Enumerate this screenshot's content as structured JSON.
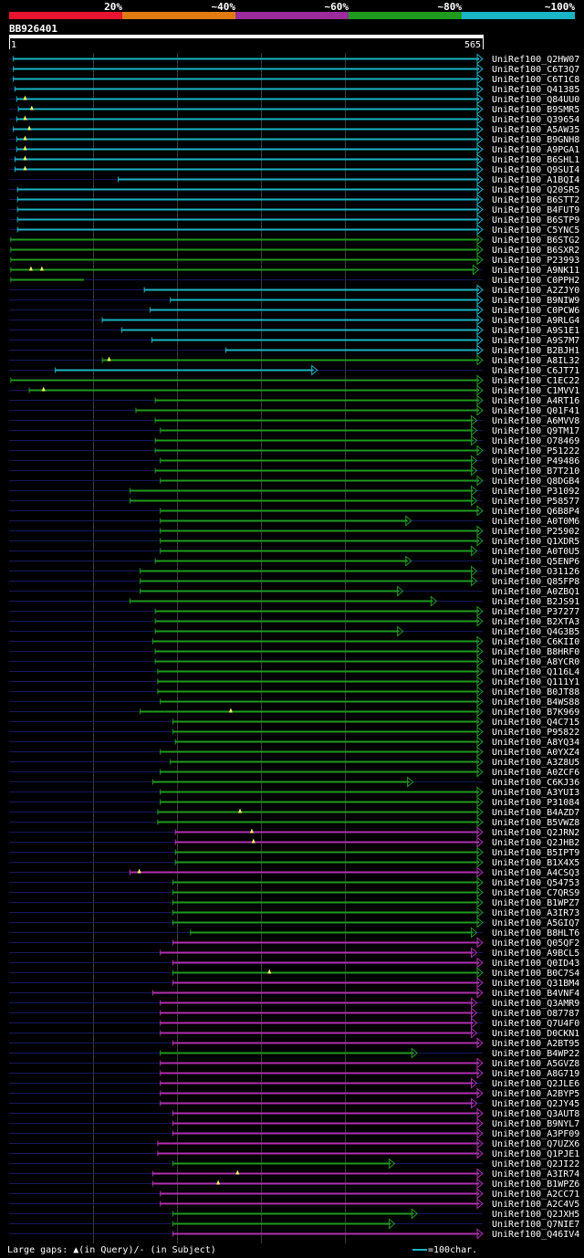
{
  "legend_scale": {
    "labels": [
      "20%",
      "~40%",
      "~60%",
      "~80%",
      "~100%"
    ],
    "colors": [
      "#e8132e",
      "#e07b12",
      "#9b2c9b",
      "#1f9a1f",
      "#19b5c4"
    ]
  },
  "query": {
    "id": "BB926401",
    "start": "1",
    "end": "565",
    "length": 565
  },
  "colors": {
    "cyan": "#19b5c4",
    "green": "#1f9a1f",
    "purple": "#b02fb0",
    "unaligned": "#141a5a",
    "grid": "#3a3a3a",
    "gap_marker": "#ffff66"
  },
  "footer": {
    "gap_note": "Large gaps: ▲(in Query)/- (in Subject)",
    "scale_note": "=100char."
  },
  "hits": [
    {
      "name": "UniRef100_Q2HW07",
      "color": "cyan",
      "start": 6,
      "end": 565,
      "arrow": true,
      "gaps": []
    },
    {
      "name": "UniRef100_C6T3Q7",
      "color": "cyan",
      "start": 6,
      "end": 565,
      "arrow": true,
      "gaps": []
    },
    {
      "name": "UniRef100_C6T1C8",
      "color": "cyan",
      "start": 6,
      "end": 565,
      "arrow": true,
      "gaps": []
    },
    {
      "name": "UniRef100_Q41385",
      "color": "cyan",
      "start": 8,
      "end": 565,
      "arrow": true,
      "gaps": []
    },
    {
      "name": "UniRef100_Q84UU0",
      "color": "cyan",
      "start": 10,
      "end": 565,
      "arrow": true,
      "gaps": [
        20
      ]
    },
    {
      "name": "UniRef100_B9SMR5",
      "color": "cyan",
      "start": 12,
      "end": 565,
      "arrow": true,
      "gaps": [
        28
      ]
    },
    {
      "name": "UniRef100_Q39654",
      "color": "cyan",
      "start": 10,
      "end": 565,
      "arrow": true,
      "gaps": [
        20
      ]
    },
    {
      "name": "UniRef100_A5AW35",
      "color": "cyan",
      "start": 6,
      "end": 565,
      "arrow": true,
      "gaps": [
        25
      ]
    },
    {
      "name": "UniRef100_B9GNH8",
      "color": "cyan",
      "start": 10,
      "end": 565,
      "arrow": true,
      "gaps": [
        20
      ]
    },
    {
      "name": "UniRef100_A9PGA1",
      "color": "cyan",
      "start": 10,
      "end": 565,
      "arrow": true,
      "gaps": [
        20
      ]
    },
    {
      "name": "UniRef100_B6SHL1",
      "color": "cyan",
      "start": 8,
      "end": 565,
      "arrow": true,
      "gaps": [
        20
      ]
    },
    {
      "name": "UniRef100_Q9SUI4",
      "color": "cyan",
      "start": 8,
      "end": 565,
      "arrow": true,
      "gaps": [
        20
      ]
    },
    {
      "name": "UniRef100_A1BQI4",
      "color": "cyan",
      "start": 131,
      "end": 565,
      "arrow": true,
      "gaps": []
    },
    {
      "name": "UniRef100_Q20SR5",
      "color": "cyan",
      "start": 11,
      "end": 565,
      "arrow": true,
      "gaps": []
    },
    {
      "name": "UniRef100_B6STT2",
      "color": "cyan",
      "start": 11,
      "end": 565,
      "arrow": true,
      "gaps": []
    },
    {
      "name": "UniRef100_B4FUT9",
      "color": "cyan",
      "start": 11,
      "end": 565,
      "arrow": true,
      "gaps": []
    },
    {
      "name": "UniRef100_B6STP9",
      "color": "cyan",
      "start": 11,
      "end": 565,
      "arrow": true,
      "gaps": []
    },
    {
      "name": "UniRef100_C5YNC5",
      "color": "cyan",
      "start": 11,
      "end": 565,
      "arrow": true,
      "gaps": []
    },
    {
      "name": "UniRef100_B6STG2",
      "color": "green",
      "start": 3,
      "end": 565,
      "arrow": true,
      "gaps": []
    },
    {
      "name": "UniRef100_B6SXR2",
      "color": "green",
      "start": 3,
      "end": 565,
      "arrow": true,
      "gaps": []
    },
    {
      "name": "UniRef100_P23993",
      "color": "green",
      "start": 3,
      "end": 565,
      "arrow": true,
      "gaps": []
    },
    {
      "name": "UniRef100_A9NK11",
      "color": "green",
      "start": 3,
      "end": 560,
      "arrow": true,
      "gaps": [
        27,
        40
      ]
    },
    {
      "name": "UniRef100_C0PPH2",
      "color": "green",
      "start": 3,
      "end": 90,
      "arrow": false,
      "gaps": []
    },
    {
      "name": "UniRef100_A2ZJY0",
      "color": "cyan",
      "start": 162,
      "end": 565,
      "arrow": true,
      "gaps": []
    },
    {
      "name": "UniRef100_B9NIW9",
      "color": "cyan",
      "start": 193,
      "end": 565,
      "arrow": true,
      "gaps": []
    },
    {
      "name": "UniRef100_C0PCW6",
      "color": "cyan",
      "start": 169,
      "end": 565,
      "arrow": true,
      "gaps": []
    },
    {
      "name": "UniRef100_A9RLG4",
      "color": "cyan",
      "start": 112,
      "end": 565,
      "arrow": true,
      "gaps": []
    },
    {
      "name": "UniRef100_A9S1E1",
      "color": "cyan",
      "start": 135,
      "end": 565,
      "arrow": true,
      "gaps": []
    },
    {
      "name": "UniRef100_A9S7M7",
      "color": "cyan",
      "start": 171,
      "end": 565,
      "arrow": true,
      "gaps": []
    },
    {
      "name": "UniRef100_B2BJH1",
      "color": "cyan",
      "start": 259,
      "end": 565,
      "arrow": true,
      "gaps": []
    },
    {
      "name": "UniRef100_A8IL32",
      "color": "green",
      "start": 112,
      "end": 565,
      "arrow": true,
      "gaps": [
        120
      ]
    },
    {
      "name": "UniRef100_C6JT71",
      "color": "cyan",
      "start": 56,
      "end": 368,
      "arrow": true,
      "gaps": []
    },
    {
      "name": "UniRef100_C1EC22",
      "color": "green",
      "start": 3,
      "end": 565,
      "arrow": true,
      "gaps": []
    },
    {
      "name": "UniRef100_C1MVV1",
      "color": "green",
      "start": 25,
      "end": 565,
      "arrow": true,
      "gaps": [
        42
      ]
    },
    {
      "name": "UniRef100_A4RT16",
      "color": "green",
      "start": 175,
      "end": 565,
      "arrow": true,
      "gaps": []
    },
    {
      "name": "UniRef100_Q01F41",
      "color": "green",
      "start": 152,
      "end": 565,
      "arrow": true,
      "gaps": []
    },
    {
      "name": "UniRef100_A6MVV8",
      "color": "green",
      "start": 175,
      "end": 558,
      "arrow": true,
      "gaps": []
    },
    {
      "name": "UniRef100_Q9TM17",
      "color": "green",
      "start": 181,
      "end": 558,
      "arrow": true,
      "gaps": []
    },
    {
      "name": "UniRef100_O78469",
      "color": "green",
      "start": 175,
      "end": 558,
      "arrow": true,
      "gaps": []
    },
    {
      "name": "UniRef100_P51222",
      "color": "green",
      "start": 175,
      "end": 565,
      "arrow": true,
      "gaps": []
    },
    {
      "name": "UniRef100_P49486",
      "color": "green",
      "start": 181,
      "end": 558,
      "arrow": true,
      "gaps": []
    },
    {
      "name": "UniRef100_B7T210",
      "color": "green",
      "start": 175,
      "end": 558,
      "arrow": true,
      "gaps": []
    },
    {
      "name": "UniRef100_Q8DGB4",
      "color": "green",
      "start": 181,
      "end": 565,
      "arrow": true,
      "gaps": []
    },
    {
      "name": "UniRef100_P31092",
      "color": "green",
      "start": 145,
      "end": 558,
      "arrow": true,
      "gaps": []
    },
    {
      "name": "UniRef100_P58577",
      "color": "green",
      "start": 145,
      "end": 558,
      "arrow": true,
      "gaps": []
    },
    {
      "name": "UniRef100_Q6B8P4",
      "color": "green",
      "start": 181,
      "end": 565,
      "arrow": true,
      "gaps": []
    },
    {
      "name": "UniRef100_A0T0M6",
      "color": "green",
      "start": 181,
      "end": 480,
      "arrow": true,
      "gaps": []
    },
    {
      "name": "UniRef100_P25902",
      "color": "green",
      "start": 181,
      "end": 565,
      "arrow": true,
      "gaps": []
    },
    {
      "name": "UniRef100_Q1XDR5",
      "color": "green",
      "start": 181,
      "end": 565,
      "arrow": true,
      "gaps": []
    },
    {
      "name": "UniRef100_A0T0U5",
      "color": "green",
      "start": 181,
      "end": 558,
      "arrow": true,
      "gaps": []
    },
    {
      "name": "UniRef100_Q5ENP6",
      "color": "green",
      "start": 175,
      "end": 480,
      "arrow": true,
      "gaps": []
    },
    {
      "name": "UniRef100_O31126",
      "color": "green",
      "start": 157,
      "end": 558,
      "arrow": true,
      "gaps": []
    },
    {
      "name": "UniRef100_Q85FP8",
      "color": "green",
      "start": 157,
      "end": 558,
      "arrow": true,
      "gaps": []
    },
    {
      "name": "UniRef100_A0ZBQ1",
      "color": "green",
      "start": 157,
      "end": 470,
      "arrow": true,
      "gaps": []
    },
    {
      "name": "UniRef100_B2JS91",
      "color": "green",
      "start": 145,
      "end": 510,
      "arrow": true,
      "gaps": []
    },
    {
      "name": "UniRef100_P37277",
      "color": "green",
      "start": 175,
      "end": 565,
      "arrow": true,
      "gaps": []
    },
    {
      "name": "UniRef100_B2XTA3",
      "color": "green",
      "start": 175,
      "end": 565,
      "arrow": true,
      "gaps": []
    },
    {
      "name": "UniRef100_Q4G3B5",
      "color": "green",
      "start": 175,
      "end": 470,
      "arrow": true,
      "gaps": []
    },
    {
      "name": "UniRef100_C6KII0",
      "color": "green",
      "start": 172,
      "end": 565,
      "arrow": true,
      "gaps": []
    },
    {
      "name": "UniRef100_B8HRF0",
      "color": "green",
      "start": 175,
      "end": 565,
      "arrow": true,
      "gaps": []
    },
    {
      "name": "UniRef100_A8YCR0",
      "color": "green",
      "start": 175,
      "end": 565,
      "arrow": true,
      "gaps": []
    },
    {
      "name": "UniRef100_Q116L4",
      "color": "green",
      "start": 178,
      "end": 565,
      "arrow": true,
      "gaps": []
    },
    {
      "name": "UniRef100_Q111Y1",
      "color": "green",
      "start": 178,
      "end": 565,
      "arrow": true,
      "gaps": []
    },
    {
      "name": "UniRef100_B0JT88",
      "color": "green",
      "start": 178,
      "end": 565,
      "arrow": true,
      "gaps": []
    },
    {
      "name": "UniRef100_B4WS88",
      "color": "green",
      "start": 181,
      "end": 565,
      "arrow": true,
      "gaps": []
    },
    {
      "name": "UniRef100_B7K969",
      "color": "green",
      "start": 157,
      "end": 565,
      "arrow": true,
      "gaps": [
        265
      ]
    },
    {
      "name": "UniRef100_Q4C715",
      "color": "green",
      "start": 196,
      "end": 565,
      "arrow": true,
      "gaps": []
    },
    {
      "name": "UniRef100_P95822",
      "color": "green",
      "start": 196,
      "end": 565,
      "arrow": true,
      "gaps": []
    },
    {
      "name": "UniRef100_A8YQ34",
      "color": "green",
      "start": 199,
      "end": 565,
      "arrow": true,
      "gaps": []
    },
    {
      "name": "UniRef100_A0YXZ4",
      "color": "green",
      "start": 181,
      "end": 565,
      "arrow": true,
      "gaps": []
    },
    {
      "name": "UniRef100_A3Z8U5",
      "color": "green",
      "start": 193,
      "end": 565,
      "arrow": true,
      "gaps": []
    },
    {
      "name": "UniRef100_A0ZCF6",
      "color": "green",
      "start": 181,
      "end": 565,
      "arrow": true,
      "gaps": []
    },
    {
      "name": "UniRef100_C6KJ36",
      "color": "green",
      "start": 172,
      "end": 482,
      "arrow": true,
      "gaps": []
    },
    {
      "name": "UniRef100_A3YUI3",
      "color": "green",
      "start": 181,
      "end": 565,
      "arrow": true,
      "gaps": []
    },
    {
      "name": "UniRef100_P31084",
      "color": "green",
      "start": 181,
      "end": 565,
      "arrow": true,
      "gaps": []
    },
    {
      "name": "UniRef100_B4AZD7",
      "color": "green",
      "start": 178,
      "end": 565,
      "arrow": true,
      "gaps": [
        276
      ]
    },
    {
      "name": "UniRef100_B5VWZ8",
      "color": "green",
      "start": 178,
      "end": 565,
      "arrow": true,
      "gaps": []
    },
    {
      "name": "UniRef100_Q2JRN2",
      "color": "purple",
      "start": 199,
      "end": 565,
      "arrow": true,
      "gaps": [
        290
      ]
    },
    {
      "name": "UniRef100_Q2JHB2",
      "color": "purple",
      "start": 199,
      "end": 565,
      "arrow": true,
      "gaps": [
        292
      ]
    },
    {
      "name": "UniRef100_B5IPT9",
      "color": "green",
      "start": 199,
      "end": 565,
      "arrow": true,
      "gaps": []
    },
    {
      "name": "UniRef100_B1X4X5",
      "color": "green",
      "start": 199,
      "end": 565,
      "arrow": true,
      "gaps": []
    },
    {
      "name": "UniRef100_A4CSQ3",
      "color": "purple",
      "start": 145,
      "end": 565,
      "arrow": true,
      "gaps": [
        156
      ]
    },
    {
      "name": "UniRef100_Q54753",
      "color": "green",
      "start": 196,
      "end": 565,
      "arrow": true,
      "gaps": []
    },
    {
      "name": "UniRef100_C7QRS9",
      "color": "green",
      "start": 196,
      "end": 565,
      "arrow": true,
      "gaps": []
    },
    {
      "name": "UniRef100_B1WPZ7",
      "color": "green",
      "start": 196,
      "end": 565,
      "arrow": true,
      "gaps": []
    },
    {
      "name": "UniRef100_A3IR73",
      "color": "green",
      "start": 196,
      "end": 565,
      "arrow": true,
      "gaps": []
    },
    {
      "name": "UniRef100_A5GIQ7",
      "color": "green",
      "start": 196,
      "end": 565,
      "arrow": true,
      "gaps": []
    },
    {
      "name": "UniRef100_B8HLT6",
      "color": "green",
      "start": 217,
      "end": 558,
      "arrow": true,
      "gaps": []
    },
    {
      "name": "UniRef100_Q05QF2",
      "color": "purple",
      "start": 196,
      "end": 565,
      "arrow": true,
      "gaps": []
    },
    {
      "name": "UniRef100_A9BCL5",
      "color": "purple",
      "start": 181,
      "end": 558,
      "arrow": true,
      "gaps": []
    },
    {
      "name": "UniRef100_Q0ID43",
      "color": "purple",
      "start": 196,
      "end": 565,
      "arrow": true,
      "gaps": []
    },
    {
      "name": "UniRef100_B0C7S4",
      "color": "green",
      "start": 196,
      "end": 565,
      "arrow": true,
      "gaps": [
        311
      ]
    },
    {
      "name": "UniRef100_Q31BM4",
      "color": "purple",
      "start": 196,
      "end": 565,
      "arrow": true,
      "gaps": []
    },
    {
      "name": "UniRef100_B4VNF4",
      "color": "purple",
      "start": 172,
      "end": 565,
      "arrow": true,
      "gaps": []
    },
    {
      "name": "UniRef100_Q3AMR9",
      "color": "purple",
      "start": 181,
      "end": 558,
      "arrow": true,
      "gaps": []
    },
    {
      "name": "UniRef100_O87787",
      "color": "purple",
      "start": 181,
      "end": 558,
      "arrow": true,
      "gaps": []
    },
    {
      "name": "UniRef100_Q7U4F0",
      "color": "purple",
      "start": 181,
      "end": 558,
      "arrow": true,
      "gaps": []
    },
    {
      "name": "UniRef100_D0CKN1",
      "color": "purple",
      "start": 181,
      "end": 558,
      "arrow": true,
      "gaps": []
    },
    {
      "name": "UniRef100_A2BT95",
      "color": "purple",
      "start": 196,
      "end": 565,
      "arrow": true,
      "gaps": []
    },
    {
      "name": "UniRef100_B4WP22",
      "color": "green",
      "start": 181,
      "end": 487,
      "arrow": true,
      "gaps": []
    },
    {
      "name": "UniRef100_A5GVZ8",
      "color": "purple",
      "start": 181,
      "end": 565,
      "arrow": true,
      "gaps": []
    },
    {
      "name": "UniRef100_A8G719",
      "color": "purple",
      "start": 181,
      "end": 565,
      "arrow": true,
      "gaps": []
    },
    {
      "name": "UniRef100_Q2JLE6",
      "color": "purple",
      "start": 181,
      "end": 558,
      "arrow": true,
      "gaps": []
    },
    {
      "name": "UniRef100_A2BYP5",
      "color": "purple",
      "start": 181,
      "end": 565,
      "arrow": true,
      "gaps": []
    },
    {
      "name": "UniRef100_Q2JY45",
      "color": "purple",
      "start": 181,
      "end": 558,
      "arrow": true,
      "gaps": []
    },
    {
      "name": "UniRef100_Q3AUT8",
      "color": "purple",
      "start": 196,
      "end": 565,
      "arrow": true,
      "gaps": []
    },
    {
      "name": "UniRef100_B9NYL7",
      "color": "purple",
      "start": 196,
      "end": 565,
      "arrow": true,
      "gaps": []
    },
    {
      "name": "UniRef100_A3PF09",
      "color": "purple",
      "start": 196,
      "end": 565,
      "arrow": true,
      "gaps": []
    },
    {
      "name": "UniRef100_Q7UZX6",
      "color": "purple",
      "start": 178,
      "end": 565,
      "arrow": true,
      "gaps": []
    },
    {
      "name": "UniRef100_Q1PJE1",
      "color": "purple",
      "start": 178,
      "end": 565,
      "arrow": true,
      "gaps": []
    },
    {
      "name": "UniRef100_Q2JI22",
      "color": "green",
      "start": 196,
      "end": 460,
      "arrow": true,
      "gaps": []
    },
    {
      "name": "UniRef100_A3IR74",
      "color": "purple",
      "start": 172,
      "end": 565,
      "arrow": true,
      "gaps": [
        273
      ]
    },
    {
      "name": "UniRef100_B1WPZ6",
      "color": "purple",
      "start": 172,
      "end": 565,
      "arrow": true,
      "gaps": [
        250
      ]
    },
    {
      "name": "UniRef100_A2CC71",
      "color": "purple",
      "start": 181,
      "end": 565,
      "arrow": true,
      "gaps": []
    },
    {
      "name": "UniRef100_A2C4V5",
      "color": "purple",
      "start": 181,
      "end": 565,
      "arrow": true,
      "gaps": []
    },
    {
      "name": "UniRef100_Q2JXH5",
      "color": "green",
      "start": 196,
      "end": 487,
      "arrow": true,
      "gaps": []
    },
    {
      "name": "UniRef100_Q7NIE7",
      "color": "green",
      "start": 196,
      "end": 460,
      "arrow": true,
      "gaps": []
    },
    {
      "name": "UniRef100_Q46IV4",
      "color": "purple",
      "start": 196,
      "end": 565,
      "arrow": true,
      "gaps": []
    }
  ]
}
